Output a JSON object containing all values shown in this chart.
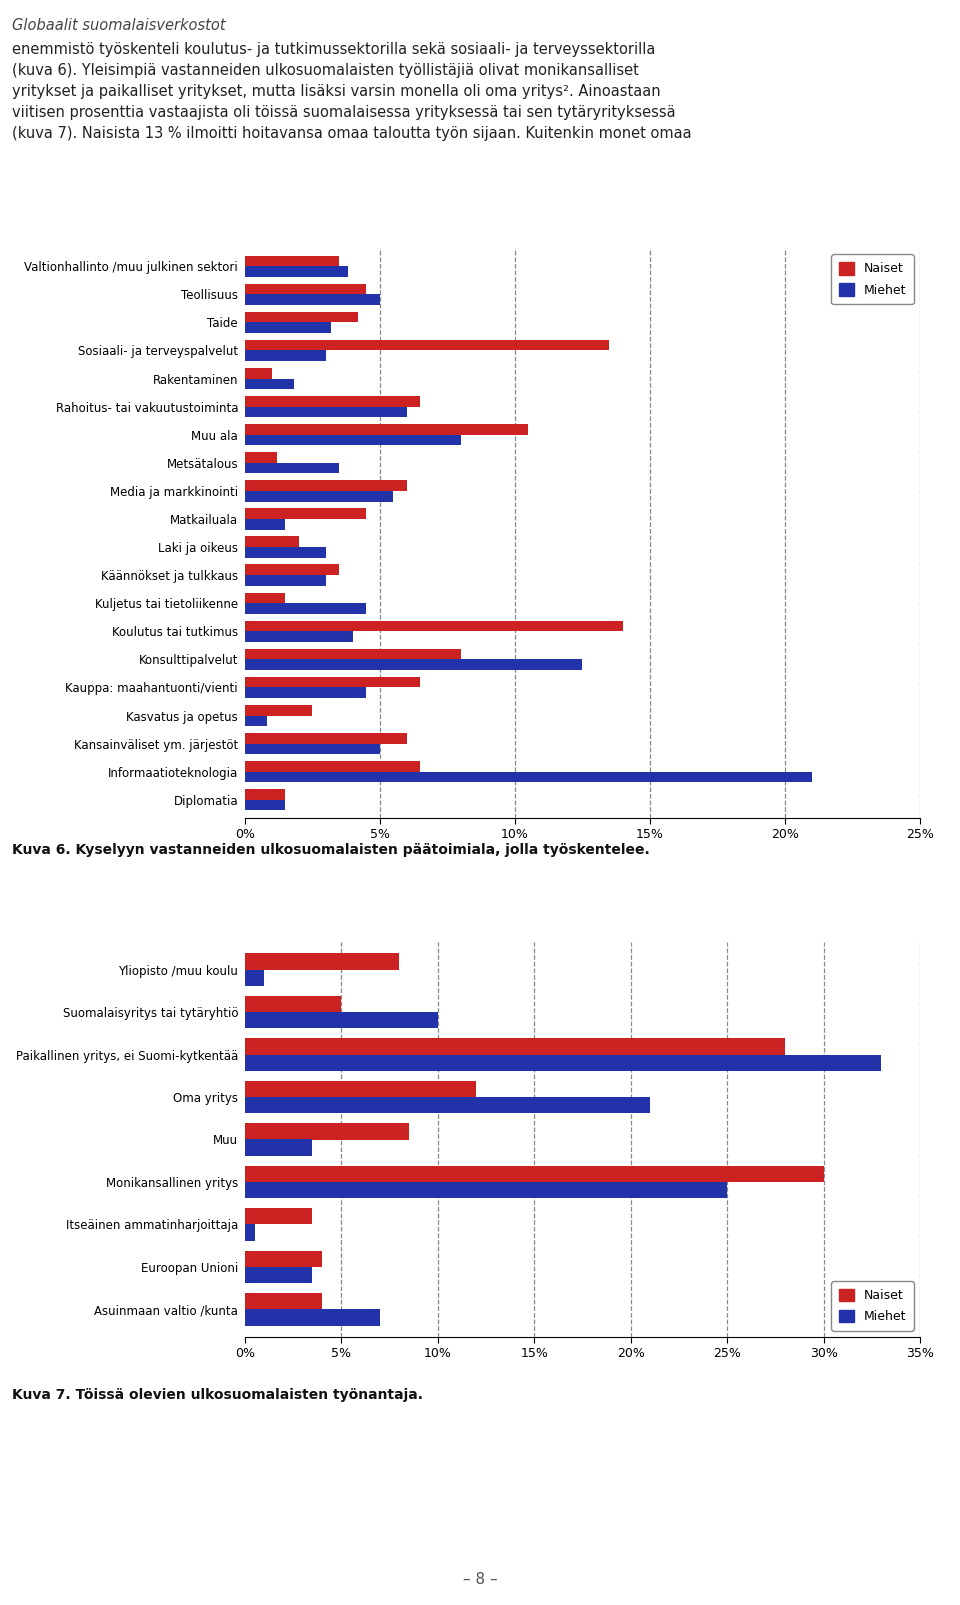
{
  "page_title": "Globaalit suomalaisverkostot",
  "body_lines": [
    "enemmistö työskenteli koulutus- ja tutkimussektorilla sekä sosiaali- ja terveyssektorilla",
    "(kuva 6). Yleisimpiä vastanneiden ulkosuomalaisten työllistäjiä olivat monikansalliset",
    "yritykset ja paikalliset yritykset, mutta lisäksi varsin monella oli oma yritys². Ainoastaan",
    "viitisen prosenttia vastaajista oli töissä suomalaisessa yrityksessä tai sen tytäryrityksessä",
    "(kuva 7). Naisista 13 % ilmoitti hoitavansa omaa taloutta työn sijaan. Kuitenkin monet omaa"
  ],
  "chart1": {
    "caption": "Kuva 6. Kyselyyn vastanneiden ulkosuomalaisten päätoimiala, jolla työskentelee.",
    "categories": [
      "Valtionhallinto /muu julkinen sektori",
      "Teollisuus",
      "Taide",
      "Sosiaali- ja terveyspalvelut",
      "Rakentaminen",
      "Rahoitus- tai vakuutustoiminta",
      "Muu ala",
      "Metsätalous",
      "Media ja markkinointi",
      "Matkailuala",
      "Laki ja oikeus",
      "Käännökset ja tulkkaus",
      "Kuljetus tai tietoliikenne",
      "Koulutus tai tutkimus",
      "Konsulttipalvelut",
      "Kauppa: maahantuonti/vienti",
      "Kasvatus ja opetus",
      "Kansainväliset ym. järjestöt",
      "Informaatioteknologia",
      "Diplomatia"
    ],
    "naiset": [
      3.5,
      4.5,
      4.2,
      13.5,
      1.0,
      6.5,
      10.5,
      1.2,
      6.0,
      4.5,
      2.0,
      3.5,
      1.5,
      14.0,
      8.0,
      6.5,
      2.5,
      6.0,
      6.5,
      1.5
    ],
    "miehet": [
      3.8,
      5.0,
      3.2,
      3.0,
      1.8,
      6.0,
      8.0,
      3.5,
      5.5,
      1.5,
      3.0,
      3.0,
      4.5,
      4.0,
      12.5,
      4.5,
      0.8,
      5.0,
      21.0,
      1.5
    ],
    "xlim": [
      0,
      25
    ],
    "xticks": [
      0,
      5,
      10,
      15,
      20,
      25
    ],
    "xticklabels": [
      "0%",
      "5%",
      "10%",
      "15%",
      "20%",
      "25%"
    ]
  },
  "chart2": {
    "caption": "Kuva 7. Töissä olevien ulkosuomalaisten työnantaja.",
    "categories": [
      "Yliopisto /muu koulu",
      "Suomalaisyritys tai tytäryhtiö",
      "Paikallinen yritys, ei Suomi-kytkentää",
      "Oma yritys",
      "Muu",
      "Monikansallinen yritys",
      "Itseäinen ammatinharjoittaja",
      "Euroopan Unioni",
      "Asuinmaan valtio /kunta"
    ],
    "naiset": [
      8.0,
      5.0,
      28.0,
      12.0,
      8.5,
      30.0,
      3.5,
      4.0,
      4.0
    ],
    "miehet": [
      1.0,
      10.0,
      33.0,
      21.0,
      3.5,
      25.0,
      0.5,
      3.5,
      7.0
    ],
    "xlim": [
      0,
      35
    ],
    "xticks": [
      0,
      5,
      10,
      15,
      20,
      25,
      30,
      35
    ],
    "xticklabels": [
      "0%",
      "5%",
      "10%",
      "15%",
      "20%",
      "25%",
      "30%",
      "35%"
    ]
  },
  "naiset_color": "#cc2222",
  "miehet_color": "#2233aa",
  "bar_height": 0.38,
  "background_color": "#ffffff",
  "legend_naiset": "Naiset",
  "legend_miehet": "Miehet",
  "page_number": "– 8 –",
  "footer_bg": "#dcdde4"
}
